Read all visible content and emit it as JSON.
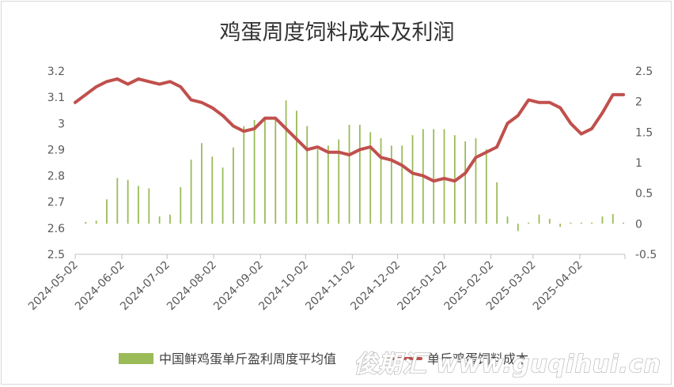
{
  "chart_data": {
    "type": "bar+line",
    "title": "鸡蛋周度饲料成本及利润",
    "left_axis": {
      "min": 2.5,
      "max": 3.2,
      "step": 0.1,
      "ticks": [
        "2.5",
        "2.6",
        "2.7",
        "2.8",
        "2.9",
        "3",
        "3.1",
        "3.2"
      ]
    },
    "right_axis": {
      "min": -0.5,
      "max": 2.5,
      "step": 0.5,
      "ticks": [
        "-0.5",
        "0",
        "0.5",
        "1",
        "1.5",
        "2",
        "2.5"
      ]
    },
    "x_range": [
      "2024-05-02",
      "2025-05-02"
    ],
    "x_ticks": [
      "2024-05-02",
      "2024-06-02",
      "2024-07-02",
      "2024-08-02",
      "2024-09-02",
      "2024-10-02",
      "2024-11-02",
      "2024-12-02",
      "2025-01-02",
      "2025-02-02",
      "2025-03-02",
      "2025-04-02"
    ],
    "gridlines": false,
    "legend_position": "bottom",
    "series": [
      {
        "name": "中国鲜鸡蛋单斤盈利周度平均值",
        "type": "bar",
        "axis": "right",
        "color": "#9bbb59",
        "x": [
          "2024-05-09",
          "2024-05-16",
          "2024-05-23",
          "2024-05-30",
          "2024-06-06",
          "2024-06-13",
          "2024-06-20",
          "2024-06-27",
          "2024-07-04",
          "2024-07-11",
          "2024-07-18",
          "2024-07-25",
          "2024-08-01",
          "2024-08-08",
          "2024-08-15",
          "2024-08-22",
          "2024-08-29",
          "2024-09-05",
          "2024-09-12",
          "2024-09-19",
          "2024-09-26",
          "2024-10-03",
          "2024-10-10",
          "2024-10-17",
          "2024-10-24",
          "2024-10-31",
          "2024-11-07",
          "2024-11-14",
          "2024-11-21",
          "2024-11-28",
          "2024-12-05",
          "2024-12-12",
          "2024-12-19",
          "2024-12-26",
          "2025-01-02",
          "2025-01-09",
          "2025-01-16",
          "2025-01-23",
          "2025-01-30",
          "2025-02-06",
          "2025-02-13",
          "2025-02-20",
          "2025-02-27",
          "2025-03-06",
          "2025-03-13",
          "2025-03-20",
          "2025-03-27",
          "2025-04-03",
          "2025-04-10",
          "2025-04-17",
          "2025-04-24",
          "2025-05-01"
        ],
        "values": [
          0.03,
          0.05,
          0.4,
          0.75,
          0.72,
          0.62,
          0.58,
          0.12,
          0.15,
          0.6,
          1.05,
          1.32,
          1.1,
          0.92,
          1.25,
          1.6,
          1.7,
          1.72,
          1.7,
          2.02,
          1.85,
          1.6,
          1.22,
          1.28,
          1.38,
          1.62,
          1.62,
          1.5,
          1.4,
          1.28,
          1.28,
          1.45,
          1.55,
          1.55,
          1.55,
          1.45,
          1.35,
          1.4,
          1.22,
          0.68,
          0.12,
          -0.12,
          0.02,
          0.15,
          0.08,
          -0.05,
          0.02,
          0.02,
          0.02,
          0.12,
          0.16,
          0.02
        ]
      },
      {
        "name": "单斤鸡蛋饲料成本",
        "type": "line",
        "axis": "left",
        "color": "#c0504d",
        "x": [
          "2024-05-02",
          "2024-05-09",
          "2024-05-16",
          "2024-05-23",
          "2024-05-30",
          "2024-06-06",
          "2024-06-13",
          "2024-06-20",
          "2024-06-27",
          "2024-07-04",
          "2024-07-11",
          "2024-07-18",
          "2024-07-25",
          "2024-08-01",
          "2024-08-08",
          "2024-08-15",
          "2024-08-22",
          "2024-08-29",
          "2024-09-05",
          "2024-09-12",
          "2024-09-19",
          "2024-09-26",
          "2024-10-03",
          "2024-10-10",
          "2024-10-17",
          "2024-10-24",
          "2024-10-31",
          "2024-11-07",
          "2024-11-14",
          "2024-11-21",
          "2024-11-28",
          "2024-12-05",
          "2024-12-12",
          "2024-12-19",
          "2024-12-26",
          "2025-01-02",
          "2025-01-09",
          "2025-01-16",
          "2025-01-23",
          "2025-01-30",
          "2025-02-06",
          "2025-02-13",
          "2025-02-20",
          "2025-02-27",
          "2025-03-06",
          "2025-03-13",
          "2025-03-20",
          "2025-03-27",
          "2025-04-03",
          "2025-04-10",
          "2025-04-17",
          "2025-04-24",
          "2025-05-01"
        ],
        "values": [
          3.08,
          3.11,
          3.14,
          3.16,
          3.17,
          3.15,
          3.17,
          3.16,
          3.15,
          3.16,
          3.14,
          3.09,
          3.08,
          3.06,
          3.03,
          2.99,
          2.97,
          2.98,
          3.02,
          3.02,
          2.98,
          2.94,
          2.9,
          2.91,
          2.89,
          2.89,
          2.88,
          2.9,
          2.91,
          2.87,
          2.86,
          2.84,
          2.81,
          2.8,
          2.78,
          2.79,
          2.78,
          2.81,
          2.87,
          2.89,
          2.91,
          3.0,
          3.03,
          3.09,
          3.08,
          3.08,
          3.06,
          3.0,
          2.96,
          2.98,
          3.04,
          3.11,
          3.11
        ]
      }
    ]
  },
  "watermark": "俊期汇 www.guqihui.cn"
}
